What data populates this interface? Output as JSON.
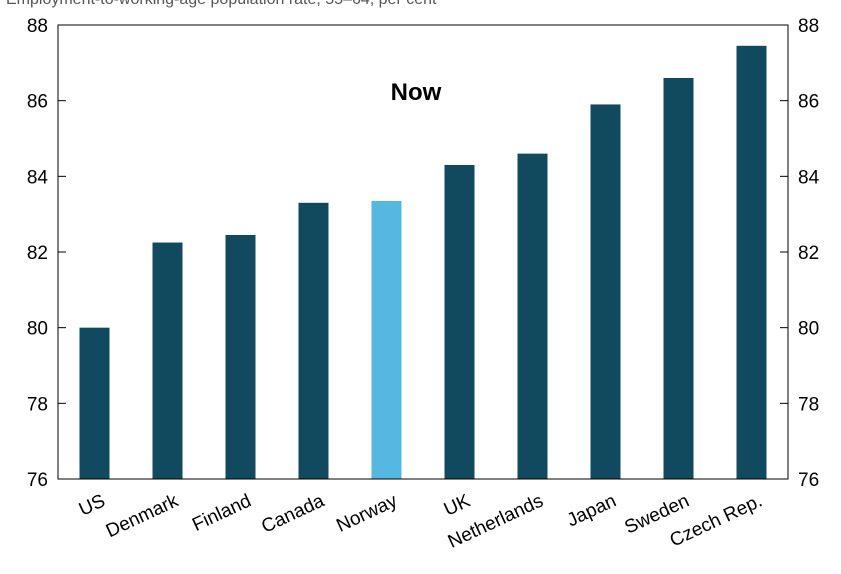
{
  "caption": "Employment-to-working-age population rate, 55–64, per cent",
  "chart_data": {
    "type": "bar",
    "title": "",
    "annotation": "Now",
    "xlabel": "",
    "ylabel": "",
    "ylim": [
      76,
      88
    ],
    "yticks": [
      76,
      78,
      80,
      82,
      84,
      86,
      88
    ],
    "ytick_labels": [
      "76",
      "78",
      "80",
      "82",
      "84",
      "86",
      "88"
    ],
    "grid": false,
    "dual_y_axis": true,
    "categories": [
      "US",
      "Denmark",
      "Finland",
      "Canada",
      "Norway",
      "UK",
      "Netherlands",
      "Japan",
      "Sweden",
      "Czech Rep."
    ],
    "values": [
      80.0,
      82.25,
      82.45,
      83.3,
      83.35,
      84.3,
      84.6,
      85.9,
      86.6,
      87.45
    ],
    "highlight": "Norway",
    "colors": {
      "bar": "#11495e",
      "highlight": "#56b8e1",
      "axis": "#000000"
    }
  }
}
